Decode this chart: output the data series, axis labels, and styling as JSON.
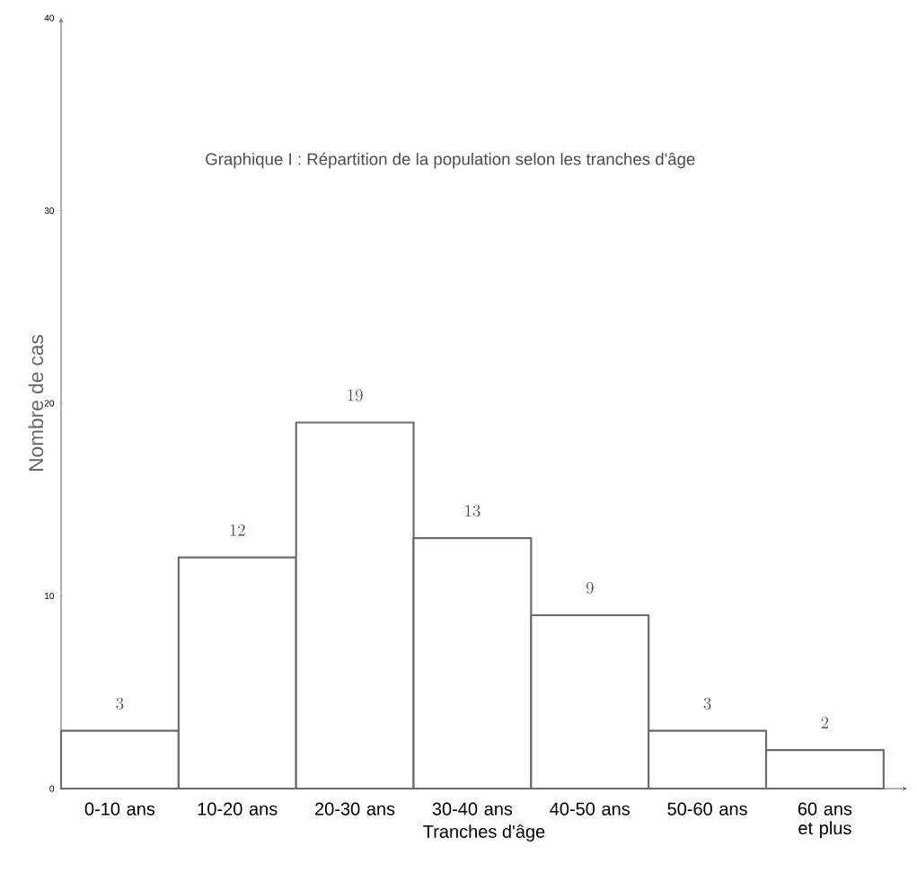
{
  "chart_data": {
    "type": "bar",
    "title": "Graphique I : Répartition de la population selon les tranches d'âge",
    "xlabel": "Tranches d'âge",
    "ylabel": "Nombre de cas",
    "categories": [
      "0-10 ans",
      "10-20 ans",
      "20-30 ans",
      "30-40 ans",
      "40-50 ans",
      "50-60 ans",
      "60 ans et plus"
    ],
    "values": [
      3,
      12,
      19,
      13,
      9,
      3,
      2
    ],
    "color": "#6b6b6b",
    "ylim": [
      0,
      40
    ],
    "yticks": [
      0,
      10,
      20,
      30,
      40
    ],
    "data_labels": true
  }
}
